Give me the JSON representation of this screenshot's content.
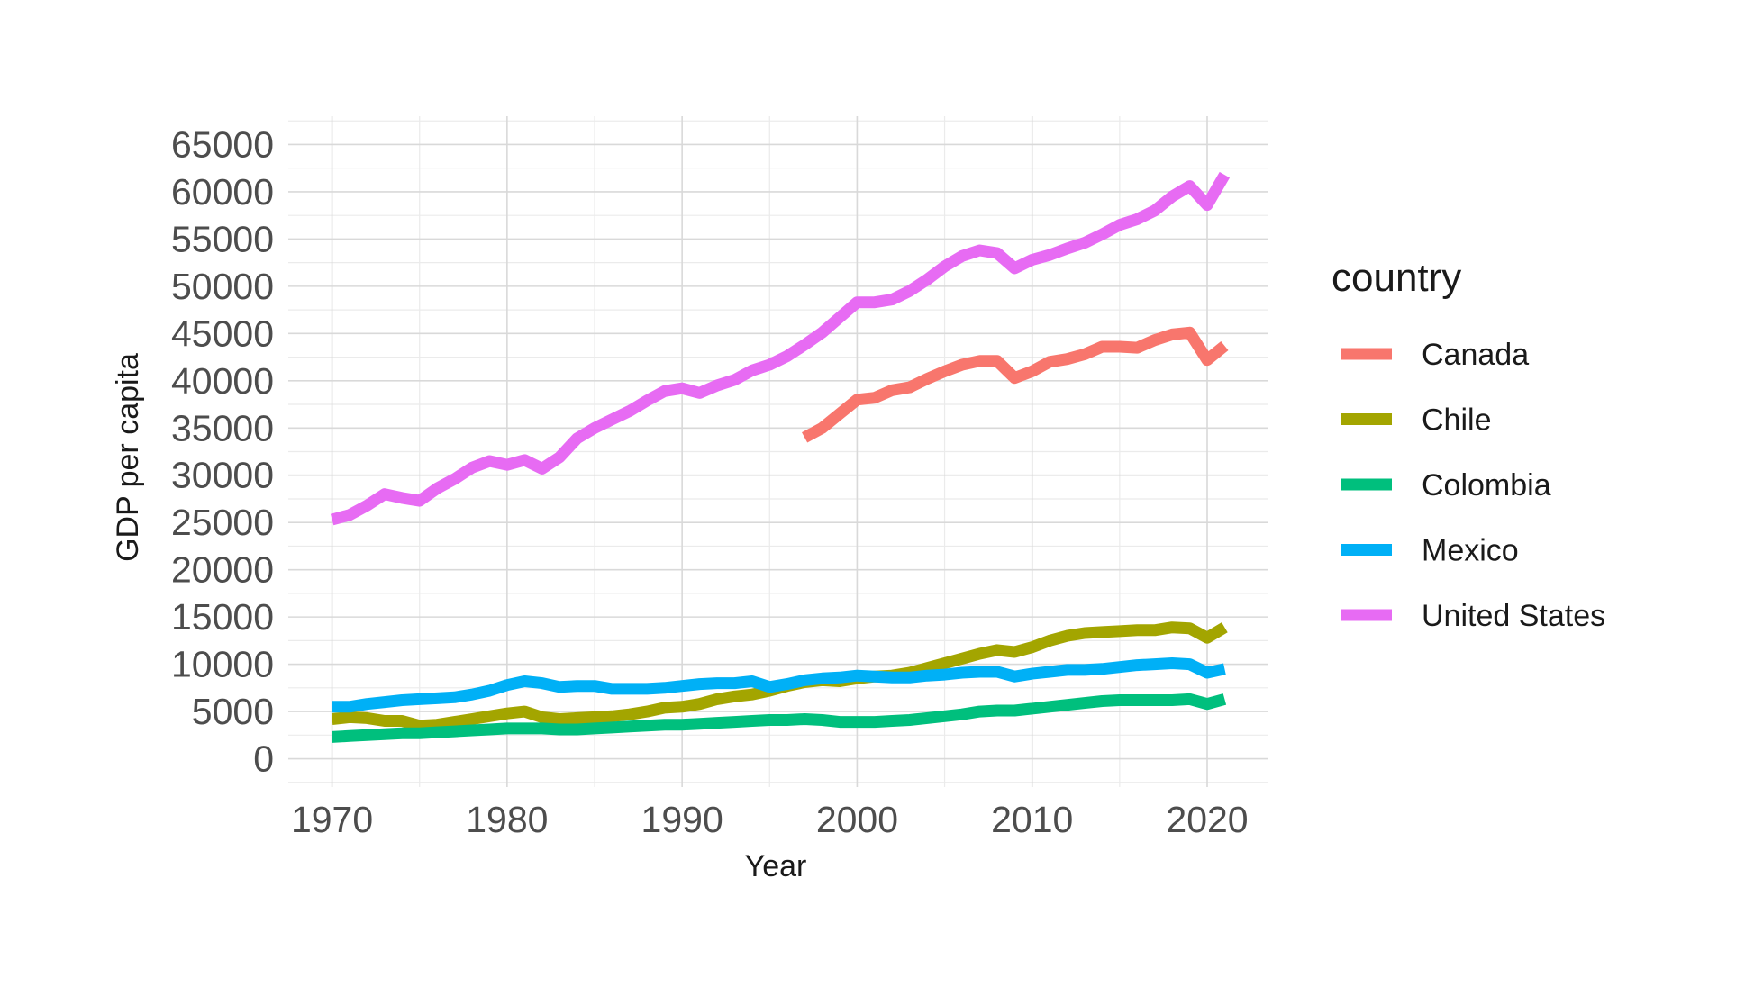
{
  "chart_data": {
    "type": "line",
    "title": "",
    "xlabel": "Year",
    "ylabel": "GDP per capita",
    "xlim": [
      1967.5,
      2023.5
    ],
    "ylim": [
      -3000,
      68000
    ],
    "x_ticks": [
      1970,
      1980,
      1990,
      2000,
      2010,
      2020
    ],
    "x_tick_labels": [
      "1970",
      "1980",
      "1990",
      "2000",
      "2010",
      "2020"
    ],
    "y_ticks": [
      0,
      5000,
      10000,
      15000,
      20000,
      25000,
      30000,
      35000,
      40000,
      45000,
      50000,
      55000,
      60000,
      65000
    ],
    "y_tick_labels": [
      "0",
      "5000",
      "10000",
      "15000",
      "20000",
      "25000",
      "30000",
      "35000",
      "40000",
      "45000",
      "50000",
      "55000",
      "60000",
      "65000"
    ],
    "grid": true,
    "legend": {
      "title": "country",
      "position": "right"
    },
    "x": [
      1970,
      1971,
      1972,
      1973,
      1974,
      1975,
      1976,
      1977,
      1978,
      1979,
      1980,
      1981,
      1982,
      1983,
      1984,
      1985,
      1986,
      1987,
      1988,
      1989,
      1990,
      1991,
      1992,
      1993,
      1994,
      1995,
      1996,
      1997,
      1998,
      1999,
      2000,
      2001,
      2002,
      2003,
      2004,
      2005,
      2006,
      2007,
      2008,
      2009,
      2010,
      2011,
      2012,
      2013,
      2014,
      2015,
      2016,
      2017,
      2018,
      2019,
      2020,
      2021
    ],
    "series": [
      {
        "name": "Canada",
        "color": "#F8766D",
        "values": [
          null,
          null,
          null,
          null,
          null,
          null,
          null,
          null,
          null,
          null,
          null,
          null,
          null,
          null,
          null,
          null,
          null,
          null,
          null,
          null,
          null,
          null,
          null,
          null,
          null,
          null,
          null,
          34000,
          35000,
          36500,
          38000,
          38200,
          39000,
          39300,
          40200,
          41000,
          41700,
          42100,
          42100,
          40300,
          41000,
          42000,
          42300,
          42800,
          43600,
          43600,
          43500,
          44300,
          44900,
          45100,
          42200,
          43700
        ]
      },
      {
        "name": "Chile",
        "color": "#A3A500",
        "values": [
          4200,
          4400,
          4300,
          4000,
          4000,
          3500,
          3600,
          3900,
          4200,
          4500,
          4800,
          5000,
          4400,
          4200,
          4300,
          4400,
          4500,
          4700,
          5000,
          5400,
          5500,
          5800,
          6300,
          6600,
          6800,
          7200,
          7700,
          8100,
          8300,
          8200,
          8500,
          8700,
          8800,
          9100,
          9600,
          10100,
          10600,
          11100,
          11500,
          11300,
          11800,
          12500,
          13000,
          13300,
          13400,
          13500,
          13600,
          13600,
          13900,
          13800,
          12800,
          13900
        ]
      },
      {
        "name": "Colombia",
        "color": "#00BF7D",
        "values": [
          2300,
          2400,
          2500,
          2600,
          2700,
          2700,
          2800,
          2900,
          3000,
          3100,
          3200,
          3200,
          3200,
          3100,
          3100,
          3200,
          3300,
          3400,
          3500,
          3600,
          3600,
          3700,
          3800,
          3900,
          4000,
          4100,
          4100,
          4200,
          4100,
          3900,
          3900,
          3900,
          4000,
          4100,
          4300,
          4500,
          4700,
          5000,
          5100,
          5100,
          5300,
          5500,
          5700,
          5900,
          6100,
          6200,
          6200,
          6200,
          6200,
          6300,
          5800,
          6300
        ]
      },
      {
        "name": "Mexico",
        "color": "#00B0F6",
        "values": [
          5500,
          5500,
          5800,
          6000,
          6200,
          6300,
          6400,
          6500,
          6800,
          7200,
          7800,
          8200,
          8000,
          7600,
          7700,
          7700,
          7400,
          7400,
          7400,
          7500,
          7700,
          7900,
          8000,
          8000,
          8200,
          7600,
          7900,
          8300,
          8500,
          8600,
          8800,
          8700,
          8600,
          8600,
          8800,
          8900,
          9100,
          9200,
          9200,
          8700,
          9000,
          9200,
          9400,
          9400,
          9500,
          9700,
          9900,
          10000,
          10100,
          10000,
          9100,
          9500
        ]
      },
      {
        "name": "United States",
        "color": "#E76BF3",
        "values": [
          25300,
          25800,
          26800,
          28000,
          27600,
          27300,
          28600,
          29600,
          30800,
          31500,
          31100,
          31600,
          30700,
          31900,
          33900,
          35000,
          35900,
          36800,
          37900,
          38900,
          39200,
          38700,
          39500,
          40100,
          41100,
          41700,
          42600,
          43800,
          45100,
          46700,
          48300,
          48300,
          48600,
          49500,
          50700,
          52100,
          53200,
          53800,
          53500,
          51900,
          52800,
          53300,
          54000,
          54600,
          55500,
          56500,
          57100,
          58000,
          59500,
          60600,
          58600,
          61800
        ]
      }
    ]
  }
}
